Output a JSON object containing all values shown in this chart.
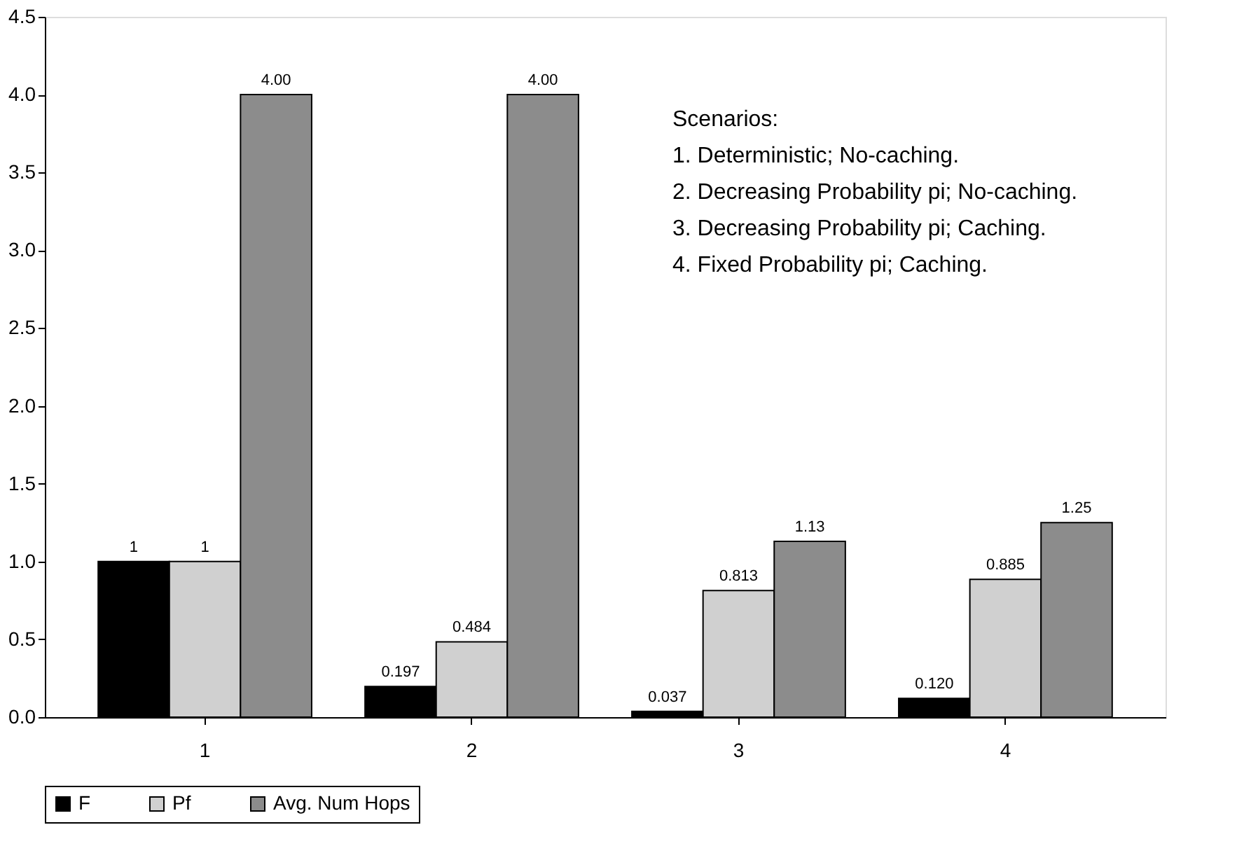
{
  "chart_data": {
    "type": "bar",
    "categories": [
      "1",
      "2",
      "3",
      "4"
    ],
    "series": [
      {
        "name": "F",
        "color": "#000000",
        "values": [
          1,
          0.197,
          0.037,
          0.12
        ],
        "value_labels": [
          "1",
          "0.197",
          "0.037",
          "0.120"
        ]
      },
      {
        "name": "Pf",
        "color": "#d0d0d0",
        "values": [
          1,
          0.484,
          0.813,
          0.885
        ],
        "value_labels": [
          "1",
          "0.484",
          "0.813",
          "0.885"
        ]
      },
      {
        "name": "Avg. Num Hops",
        "color": "#8c8c8c",
        "values": [
          4.0,
          4.0,
          1.13,
          1.25
        ],
        "value_labels": [
          "4.00",
          "4.00",
          "1.13",
          "1.25"
        ]
      }
    ],
    "ylim": [
      0,
      4.5
    ],
    "yticks": [
      {
        "value": 0,
        "label": "0.0"
      },
      {
        "value": 0.5,
        "label": "0.5"
      },
      {
        "value": 1,
        "label": "1.0"
      },
      {
        "value": 1.5,
        "label": "1.5"
      },
      {
        "value": 2,
        "label": "2.0"
      },
      {
        "value": 2.5,
        "label": "2.5"
      },
      {
        "value": 3,
        "label": "3.0"
      },
      {
        "value": 3.5,
        "label": "3.5"
      },
      {
        "value": 4,
        "label": "4.0"
      },
      {
        "value": 4.5,
        "label": "4.5"
      }
    ],
    "annotations": [
      "Scenarios:",
      "1. Deterministic; No-caching.",
      "2. Decreasing Probability pi; No-caching.",
      "3. Decreasing Probability pi; Caching.",
      "4. Fixed Probability pi; Caching."
    ],
    "grid": false,
    "legend": "bottom"
  }
}
